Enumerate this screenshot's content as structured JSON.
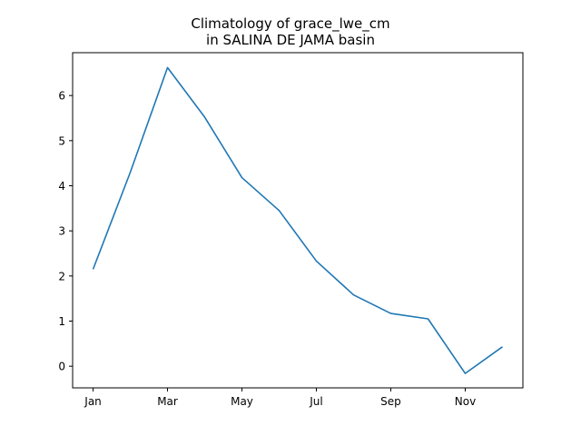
{
  "chart_data": {
    "type": "line",
    "title_lines": [
      "Climatology of grace_lwe_cm",
      "in SALINA DE JAMA basin"
    ],
    "xlabel": "",
    "ylabel": "",
    "x": [
      1,
      2,
      3,
      4,
      5,
      6,
      7,
      8,
      9,
      10,
      11,
      12
    ],
    "x_ticks": [
      {
        "value": 1,
        "label": "Jan"
      },
      {
        "value": 3,
        "label": "Mar"
      },
      {
        "value": 5,
        "label": "May"
      },
      {
        "value": 7,
        "label": "Jul"
      },
      {
        "value": 9,
        "label": "Sep"
      },
      {
        "value": 11,
        "label": "Nov"
      }
    ],
    "y_ticks": [
      0,
      1,
      2,
      3,
      4,
      5,
      6
    ],
    "xlim": [
      0.45,
      12.55
    ],
    "ylim": [
      -0.48,
      6.95
    ],
    "series": [
      {
        "color": "#1f77b4",
        "values": [
          2.15,
          4.3,
          6.62,
          5.52,
          4.18,
          3.45,
          2.33,
          1.58,
          1.17,
          1.05,
          -0.16,
          0.43
        ]
      }
    ],
    "grid": false,
    "legend": "none"
  }
}
